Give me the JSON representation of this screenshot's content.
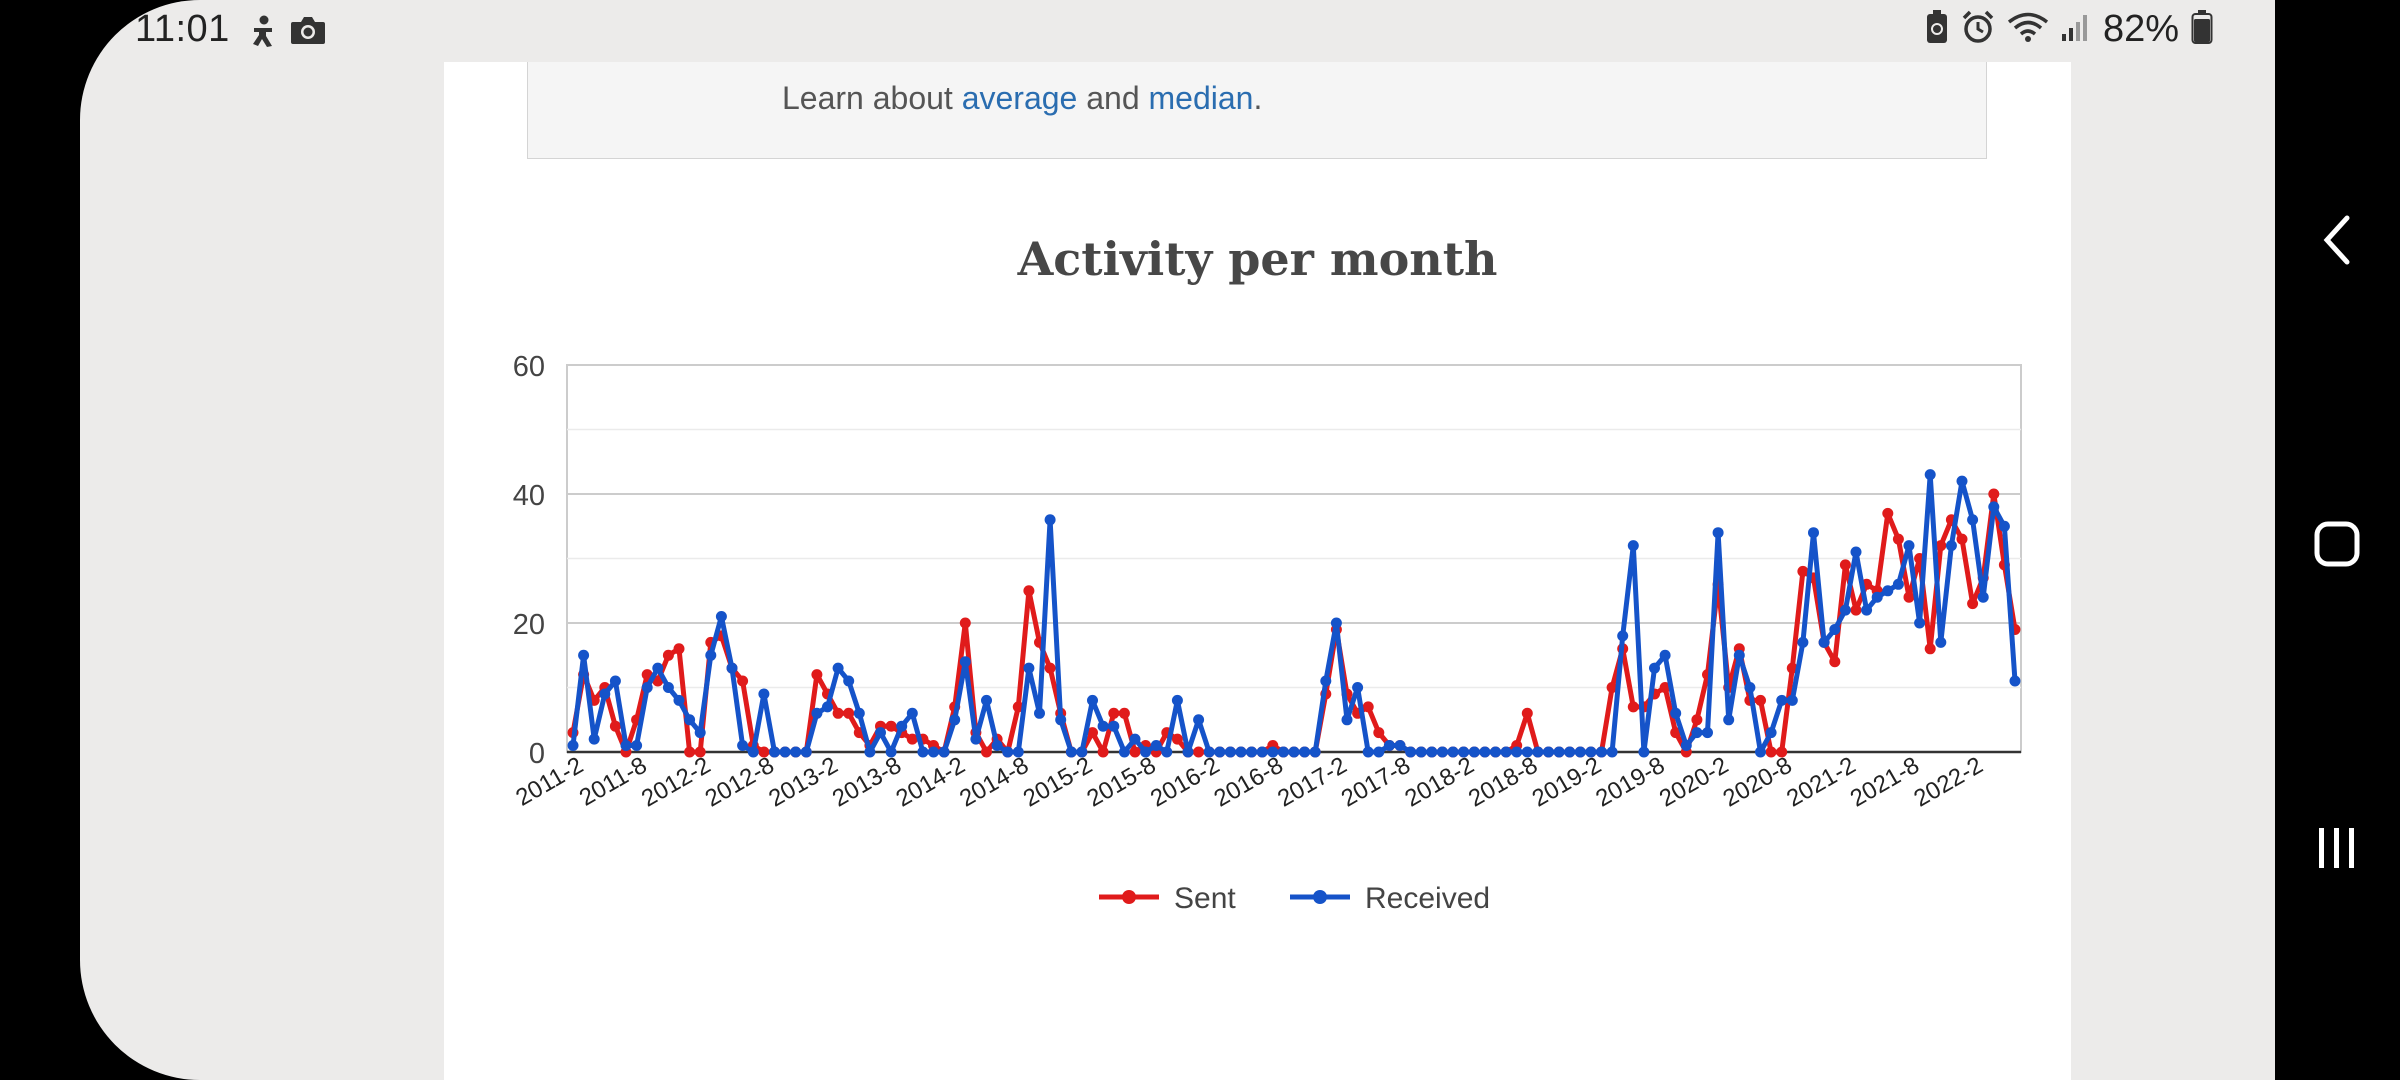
{
  "status_bar": {
    "time": "11:01",
    "left_icons": [
      "accessibility-icon",
      "camera-icon"
    ],
    "right_icons": [
      "battery-saver-icon",
      "alarm-icon",
      "wifi-icon",
      "signal-icon"
    ],
    "battery": "82%"
  },
  "info_box": {
    "prefix": "Learn about ",
    "link_average": "average",
    "middle": " and ",
    "link_median": "median",
    "suffix": "."
  },
  "colors": {
    "sent": "#e01b1b",
    "received": "#1553c9",
    "link": "#2a6db0"
  },
  "nav": {
    "icons": [
      "back-icon",
      "home-icon",
      "recents-icon"
    ]
  },
  "chart_data": {
    "type": "line",
    "title": "Activity per month",
    "xlabel": "",
    "ylabel": "",
    "ylim": [
      0,
      60
    ],
    "yticks": [
      0,
      20,
      40,
      60
    ],
    "grid": true,
    "legend": "bottom",
    "x_start": "2011-2",
    "x_end": "2022-6",
    "x_tick_labels": [
      "2011-2",
      "2011-8",
      "2012-2",
      "2012-8",
      "2013-2",
      "2013-8",
      "2014-2",
      "2014-8",
      "2015-2",
      "2015-8",
      "2016-2",
      "2016-8",
      "2017-2",
      "2017-8",
      "2018-2",
      "2018-8",
      "2019-2",
      "2019-8",
      "2020-2",
      "2020-8",
      "2021-2",
      "2021-8",
      "2022-2"
    ],
    "series": [
      {
        "name": "Sent",
        "values": [
          3,
          12,
          8,
          10,
          4,
          0,
          5,
          12,
          11,
          15,
          16,
          0,
          0,
          17,
          18,
          13,
          11,
          1,
          0,
          0,
          0,
          0,
          0,
          12,
          9,
          6,
          6,
          3,
          1,
          4,
          4,
          3,
          2,
          2,
          1,
          0,
          7,
          20,
          3,
          0,
          2,
          0,
          7,
          25,
          17,
          13,
          6,
          0,
          0,
          3,
          0,
          6,
          6,
          0,
          1,
          0,
          3,
          2,
          0,
          0,
          0,
          0,
          0,
          0,
          0,
          0,
          1,
          0,
          0,
          0,
          0,
          9,
          19,
          9,
          6,
          7,
          3,
          1,
          1,
          0,
          0,
          0,
          0,
          0,
          0,
          0,
          0,
          0,
          0,
          1,
          6,
          0,
          0,
          0,
          0,
          0,
          0,
          0,
          10,
          16,
          7,
          7,
          9,
          10,
          3,
          0,
          5,
          12,
          26,
          10,
          16,
          8,
          8,
          0,
          0,
          13,
          28,
          27,
          17,
          14,
          29,
          22,
          26,
          25,
          37,
          33,
          24,
          30,
          16,
          32,
          36,
          33,
          23,
          27,
          40,
          29,
          19
        ]
      },
      {
        "name": "Received",
        "values": [
          1,
          15,
          2,
          9,
          11,
          1,
          1,
          10,
          13,
          10,
          8,
          5,
          3,
          15,
          21,
          13,
          1,
          0,
          9,
          0,
          0,
          0,
          0,
          6,
          7,
          13,
          11,
          6,
          0,
          3,
          0,
          4,
          6,
          0,
          0,
          0,
          5,
          14,
          2,
          8,
          1,
          0,
          0,
          13,
          6,
          36,
          5,
          0,
          0,
          8,
          4,
          4,
          0,
          2,
          0,
          1,
          0,
          8,
          0,
          5,
          0,
          0,
          0,
          0,
          0,
          0,
          0,
          0,
          0,
          0,
          0,
          11,
          20,
          5,
          10,
          0,
          0,
          1,
          1,
          0,
          0,
          0,
          0,
          0,
          0,
          0,
          0,
          0,
          0,
          0,
          0,
          0,
          0,
          0,
          0,
          0,
          0,
          0,
          0,
          18,
          32,
          0,
          13,
          15,
          6,
          1,
          3,
          3,
          34,
          5,
          15,
          10,
          0,
          3,
          8,
          8,
          17,
          34,
          17,
          19,
          22,
          31,
          22,
          24,
          25,
          26,
          32,
          20,
          43,
          17,
          32,
          42,
          36,
          24,
          38,
          35,
          11
        ]
      }
    ]
  }
}
